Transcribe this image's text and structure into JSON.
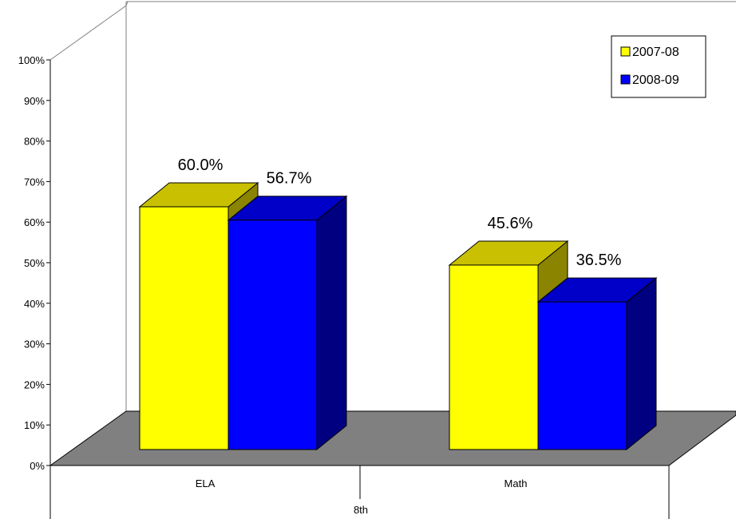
{
  "chart_data": {
    "type": "bar",
    "group_label": "8th",
    "categories": [
      "ELA",
      "Math"
    ],
    "series": [
      {
        "name": "2007-08",
        "values": [
          60.0,
          45.6
        ],
        "labels": [
          "60.0%",
          "45.6%"
        ],
        "color": "#FFFF00",
        "top_color": "#C8C000",
        "side_color": "#8A8400"
      },
      {
        "name": "2008-09",
        "values": [
          56.7,
          36.5
        ],
        "labels": [
          "56.7%",
          "36.5%"
        ],
        "color": "#0000FF",
        "top_color": "#0000C8",
        "side_color": "#000080"
      }
    ],
    "ylim": [
      0,
      100
    ],
    "yticks": [
      "0%",
      "10%",
      "20%",
      "30%",
      "40%",
      "50%",
      "60%",
      "70%",
      "80%",
      "90%",
      "100%"
    ],
    "legend_position": "top-right",
    "floor_color": "#808080",
    "grid": false
  }
}
